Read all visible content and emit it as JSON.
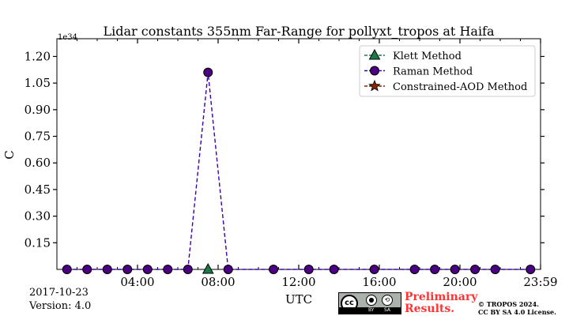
{
  "chart_data": {
    "type": "line",
    "title": "Lidar constants 355nm Far-Range for pollyxt_tropos at Haifa",
    "xlabel": "UTC",
    "ylabel": "C",
    "y_scale_note": "1e34",
    "xlim_hours": [
      0,
      24
    ],
    "ylim": [
      0,
      1.3
    ],
    "x_tick_labels": [
      "04:00",
      "08:00",
      "12:00",
      "16:00",
      "20:00",
      "23:59"
    ],
    "x_tick_hours": [
      4,
      8,
      12,
      16,
      20,
      24
    ],
    "y_tick_values": [
      0.15,
      0.3,
      0.45,
      0.6,
      0.75,
      0.9,
      1.05,
      1.2
    ],
    "y_tick_labels": [
      "0.15",
      "0.30",
      "0.45",
      "0.60",
      "0.75",
      "0.90",
      "1.05",
      "1.20"
    ],
    "legend_position": "top-right",
    "series": [
      {
        "name": "Klett Method",
        "marker": "triangle",
        "color": "#1b7a4a",
        "points": [
          [
            7.5,
            0.0
          ]
        ]
      },
      {
        "name": "Raman Method",
        "marker": "circle",
        "color": "#4b0082",
        "points": [
          [
            0.5,
            0.0
          ],
          [
            1.5,
            0.0
          ],
          [
            2.5,
            0.0
          ],
          [
            3.5,
            0.0
          ],
          [
            4.5,
            0.0
          ],
          [
            5.5,
            0.0
          ],
          [
            6.5,
            0.0
          ],
          [
            7.5,
            1.11
          ],
          [
            8.5,
            0.0
          ],
          [
            10.75,
            0.0
          ],
          [
            12.5,
            0.0
          ],
          [
            13.75,
            0.0
          ],
          [
            15.75,
            0.0
          ],
          [
            17.75,
            0.0
          ],
          [
            18.75,
            0.0
          ],
          [
            19.75,
            0.0
          ],
          [
            20.75,
            0.0
          ],
          [
            21.75,
            0.0
          ],
          [
            23.5,
            0.0
          ]
        ]
      },
      {
        "name": "Constrained-AOD Method",
        "marker": "star",
        "color": "#8b2500",
        "points": []
      }
    ]
  },
  "footer": {
    "date": "2017-10-23",
    "version": "Version: 4.0",
    "preliminary_line1": "Preliminary",
    "preliminary_line2": "Results.",
    "copyright_line1": "© TROPOS 2024.",
    "copyright_line2": "CC BY SA 4.0 License.",
    "cc_logo_text": "cc",
    "cc_by": "BY",
    "cc_sa": "SA"
  },
  "colors": {
    "klett": "#1b7a4a",
    "raman": "#4b0082",
    "aod": "#8b2500",
    "raman_line": "#3d00a8",
    "preliminary": "#ff3333"
  }
}
